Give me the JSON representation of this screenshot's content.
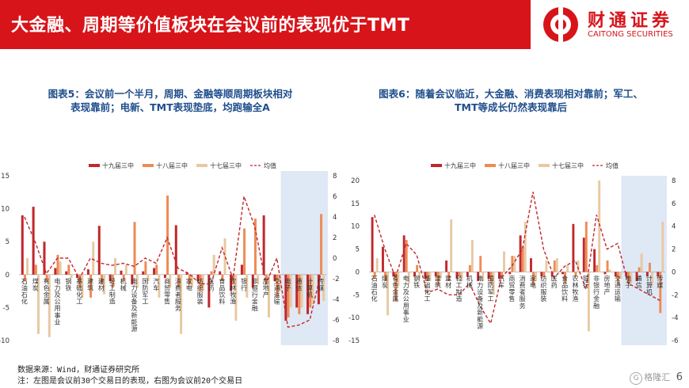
{
  "header": {
    "title": "大金融、周期等价值板块在会议前的表现优于TMT"
  },
  "brand": {
    "name": "财通证券",
    "name_en": "CAITONG SECURITIES",
    "color": "#d7141a"
  },
  "left_caption": "图表5：会议前一个半月，周期、金融等顺周期板块相对表现靠前；电新、TMT表现垫底，均跑输全A",
  "right_caption": "图表6：随着会议临近，大金融、消费表现相对靠前；军工、TMT等成长仍然表现靠后",
  "footnotes": [
    "数据来源：Wind，财通证券研究所",
    "注：左图是会议前30个交易日的表现，右图为会议前20个交易日"
  ],
  "watermark": "格隆汇",
  "page_number": "6",
  "chart_data": [
    {
      "type": "bar",
      "legend": [
        "十九届三中",
        "十八届三中",
        "十七届三中",
        "均值"
      ],
      "series_colors": [
        "#c0282c",
        "#ee8b55",
        "#e8c9a3",
        "#c0282c"
      ],
      "yleft": {
        "min": -10,
        "max": 15,
        "ticks": [
          -10,
          -5,
          0,
          5,
          10,
          15
        ]
      },
      "yright": {
        "min": -8,
        "max": 8,
        "ticks": [
          -8,
          -6,
          -4,
          -2,
          0,
          2,
          4,
          6,
          8
        ]
      },
      "categories": [
        "石油石化",
        "煤炭",
        "有色金属",
        "电力及公用事业",
        "钢铁",
        "基础化工",
        "建筑",
        "建材",
        "轻工制造",
        "机械",
        "电力设备及新能源",
        "国防军工",
        "汽车",
        "商贸零售",
        "消费者服务",
        "家电",
        "纺织服装",
        "医药",
        "食品饮料",
        "农林牧渔",
        "银行",
        "非银行金融",
        "房地产",
        "交通运输",
        "电子",
        "通信",
        "计算机",
        "传媒"
      ],
      "series": [
        {
          "name": "十九届三中",
          "values": [
            9.0,
            10.3,
            5.0,
            1.0,
            0.5,
            -0.5,
            0.8,
            7.4,
            -1.0,
            0.6,
            -1.5,
            0.5,
            1.0,
            -0.5,
            7.5,
            0.3,
            -1.0,
            -5.0,
            0.5,
            -2.5,
            1.5,
            -2.0,
            9.0,
            -1.0,
            -7.0,
            -5.0,
            -6.0,
            -4.5
          ]
        },
        {
          "name": "十八届三中",
          "values": [
            -1.0,
            1.5,
            -1.0,
            3.0,
            1.5,
            -2.0,
            -3.5,
            -1.5,
            -2.0,
            -1.0,
            8.0,
            2.0,
            1.5,
            12.0,
            -2.0,
            -1.5,
            -2.5,
            0.5,
            -1.0,
            -1.5,
            7.0,
            8.5,
            -1.0,
            -3.5,
            -6.5,
            -6.0,
            -5.0,
            9.2
          ]
        },
        {
          "name": "十七届三中",
          "values": [
            2.5,
            -9.0,
            -9.5,
            2.0,
            -0.5,
            -3.5,
            5.0,
            -3.0,
            2.5,
            1.5,
            -2.0,
            -1.0,
            -3.5,
            -2.0,
            -9.0,
            -2.0,
            -2.5,
            3.0,
            5.5,
            -7.0,
            -3.5,
            -1.5,
            -6.5,
            -2.5,
            -5.0,
            -5.0,
            -4.5,
            -4.0
          ]
        },
        {
          "name": "均值",
          "values": [
            4.0,
            1.5,
            -1.5,
            0.0,
            0.0,
            -2.0,
            0.0,
            -0.5,
            -0.7,
            -0.5,
            -0.8,
            0.0,
            -0.5,
            2.0,
            -1.0,
            -1.5,
            -2.5,
            -2.5,
            1.0,
            -2.0,
            6.0,
            3.0,
            -2.5,
            0.0,
            -6.7,
            -6.5,
            -6.0,
            -1.5
          ]
        }
      ]
    },
    {
      "type": "bar",
      "legend": [
        "十九届三中",
        "十八届三中",
        "十七届三中",
        "均值"
      ],
      "series_colors": [
        "#c0282c",
        "#ee8b55",
        "#e8c9a3",
        "#c0282c"
      ],
      "yleft": {
        "min": -15,
        "max": 20,
        "ticks": [
          -15,
          -10,
          -5,
          0,
          5,
          10,
          15,
          20
        ]
      },
      "yright": {
        "min": -6,
        "max": 8,
        "ticks": [
          -6,
          -4,
          -2,
          0,
          2,
          4,
          6,
          8
        ]
      },
      "categories": [
        "石油石化",
        "煤炭",
        "有色金属",
        "电力及公用事业",
        "钢铁",
        "基础化工",
        "建筑",
        "建材",
        "轻工制造",
        "机械",
        "电力设备及新能源",
        "国防军工",
        "汽车",
        "商贸零售",
        "消费者服务",
        "家电",
        "纺织服装",
        "医药",
        "食品饮料",
        "农林牧渔",
        "银行",
        "非银行金融",
        "房地产",
        "交通运输",
        "电子",
        "通信",
        "计算机",
        "传媒"
      ],
      "series": [
        {
          "name": "十九届三中",
          "values": [
            12.0,
            5.5,
            -1.0,
            8.0,
            -1.0,
            -1.5,
            -1.0,
            2.5,
            -1.5,
            -1.0,
            -2.0,
            -1.5,
            -1.5,
            -0.5,
            8.0,
            3.0,
            -1.0,
            -1.0,
            -0.5,
            10.5,
            7.5,
            5.0,
            -0.5,
            -1.0,
            -1.0,
            -2.0,
            -1.0,
            -1.0
          ]
        },
        {
          "name": "十八届三中",
          "values": [
            -1.5,
            -2.0,
            -6.5,
            7.0,
            1.5,
            -2.0,
            -3.0,
            -2.0,
            -1.0,
            1.5,
            3.5,
            -2.5,
            -1.5,
            3.5,
            5.5,
            -3.0,
            -1.0,
            2.5,
            -2.5,
            -1.0,
            11.0,
            1.5,
            2.5,
            -2.5,
            -2.5,
            1.0,
            2.0,
            -9.0
          ]
        },
        {
          "name": "十七届三中",
          "values": [
            3.0,
            -9.5,
            -3.0,
            -2.5,
            -1.5,
            -2.0,
            -1.5,
            11.5,
            -2.0,
            7.0,
            -2.0,
            -5.0,
            4.5,
            3.5,
            11.0,
            -2.0,
            2.5,
            3.0,
            1.5,
            2.5,
            -13.0,
            20.0,
            0.5,
            -1.5,
            -2.5,
            4.0,
            -3.0,
            11.0
          ]
        },
        {
          "name": "均值",
          "values": [
            5.0,
            2.0,
            -0.5,
            2.5,
            1.5,
            -1.8,
            -1.5,
            -2.0,
            -2.0,
            -1.0,
            -3.0,
            -4.5,
            -0.5,
            0.5,
            2.0,
            7.0,
            2.0,
            -0.5,
            0.5,
            1.0,
            -1.5,
            5.0,
            2.0,
            2.5,
            -1.0,
            -1.5,
            -2.0,
            -2.5
          ]
        }
      ]
    }
  ]
}
